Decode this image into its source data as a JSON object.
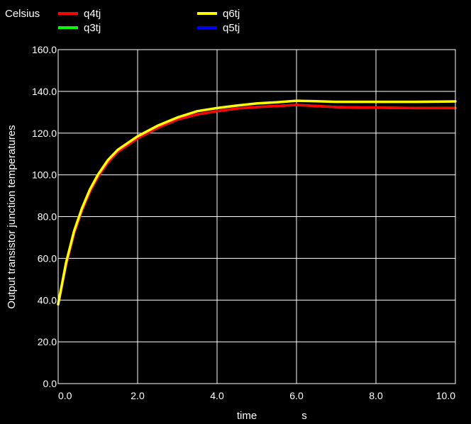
{
  "chart_data": {
    "type": "line",
    "unit_label": "Celsius",
    "ylabel": "Output transistor junction temperatures",
    "xlabel": "time",
    "xunit": "s",
    "xlim": [
      0,
      10
    ],
    "ylim": [
      0,
      160
    ],
    "xticks": [
      "0.0",
      "2.0",
      "4.0",
      "6.0",
      "8.0",
      "10.0"
    ],
    "yticks": [
      "0.0",
      "20.0",
      "40.0",
      "60.0",
      "80.0",
      "100.0",
      "120.0",
      "140.0",
      "160.0"
    ],
    "grid": true,
    "legend_position": "top",
    "x": [
      0,
      0.2,
      0.4,
      0.6,
      0.8,
      1.0,
      1.25,
      1.5,
      2.0,
      2.5,
      3.0,
      3.5,
      4.0,
      4.5,
      5.0,
      5.5,
      6.0,
      6.5,
      7.0,
      7.5,
      8.0,
      9.0,
      10.0
    ],
    "series": [
      {
        "name": "q4tj",
        "color": "#ff0000",
        "values": [
          38,
          57,
          72,
          83,
          92,
          99,
          106,
          111,
          117.5,
          122.5,
          126.5,
          129,
          130.5,
          131.8,
          132.5,
          133,
          133.5,
          133,
          132.5,
          132.3,
          132.2,
          132,
          132
        ]
      },
      {
        "name": "q3tj",
        "color": "#00ff00",
        "values": [
          38,
          57,
          72,
          83,
          92,
          99,
          106,
          111,
          117.5,
          122.5,
          126.5,
          129,
          130.5,
          131.8,
          132.5,
          133,
          133.5,
          133,
          132.5,
          132.3,
          132.2,
          132,
          132
        ]
      },
      {
        "name": "q6tj",
        "color": "#ffff00",
        "values": [
          38,
          58,
          73,
          84,
          93,
          100,
          107,
          112,
          118.5,
          123.5,
          127.5,
          130.5,
          132,
          133.2,
          134.2,
          134.8,
          135.5,
          135.3,
          135,
          135,
          135,
          135,
          135.2
        ]
      },
      {
        "name": "q5tj",
        "color": "#0000ff",
        "values": [
          38,
          58,
          73,
          84,
          93,
          100,
          107,
          112,
          118.5,
          123.5,
          127.5,
          130.5,
          132,
          133.2,
          134.2,
          134.8,
          135.5,
          135.3,
          135,
          135,
          135,
          135,
          135.2
        ]
      }
    ],
    "draw_order": [
      "q5tj",
      "q3tj",
      "q4tj",
      "q6tj"
    ]
  }
}
